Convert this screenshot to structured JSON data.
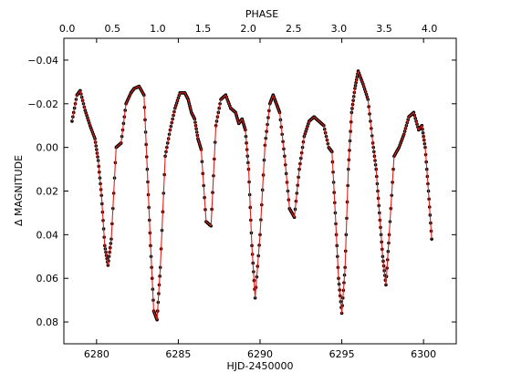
{
  "chart_data": {
    "type": "scatter",
    "xlabel": "HJD-2450000",
    "ylabel": "Δ MAGNITUDE",
    "top_xlabel": "PHASE",
    "xlim": [
      6278,
      6302
    ],
    "ylim": [
      0.09,
      -0.05
    ],
    "y_inverted": true,
    "x_ticks": [
      "6280",
      "6285",
      "6290",
      "6295",
      "6300"
    ],
    "y_ticks": [
      "−0.04",
      "−0.02",
      "0.00",
      "0.02",
      "0.04",
      "0.06",
      "0.08"
    ],
    "top_ticks": [
      "0.0",
      "0.5",
      "1.0",
      "1.5",
      "2.0",
      "2.5",
      "3.0",
      "3.5",
      "4.0"
    ],
    "top_axis": {
      "phase_zero_hjd": 6278.2,
      "period_days": 5.54
    },
    "grid": false,
    "series": [
      {
        "style": "points",
        "color": "#000000",
        "x": [
          6278.5,
          6278.8,
          6279.0,
          6279.3,
          6279.6,
          6279.9,
          6280.1,
          6280.3,
          6280.5,
          6280.7,
          6280.9,
          6281.2,
          6281.5,
          6281.8,
          6282.1,
          6282.3,
          6282.6,
          6282.9,
          6283.1,
          6283.3,
          6283.5,
          6283.7,
          6283.9,
          6284.2,
          6284.5,
          6284.8,
          6285.1,
          6285.4,
          6285.6,
          6285.8,
          6286.0,
          6286.2,
          6286.4,
          6286.7,
          6287.0,
          6287.3,
          6287.6,
          6287.9,
          6288.2,
          6288.5,
          6288.7,
          6288.9,
          6289.1,
          6289.3,
          6289.5,
          6289.7,
          6290.0,
          6290.3,
          6290.6,
          6290.8,
          6291.0,
          6291.2,
          6291.5,
          6291.8,
          6292.1,
          6292.4,
          6292.7,
          6293.0,
          6293.3,
          6293.6,
          6293.9,
          6294.2,
          6294.4,
          6294.6,
          6294.8,
          6295.0,
          6295.2,
          6295.4,
          6295.6,
          6295.8,
          6296.0,
          6296.3,
          6296.6,
          6296.9,
          6297.1,
          6297.3,
          6297.5,
          6297.7,
          6297.9,
          6298.2,
          6298.5,
          6298.8,
          6299.1,
          6299.4,
          6299.7,
          6299.9,
          6300.1,
          6300.3,
          6300.5
        ],
        "y": [
          -0.012,
          -0.024,
          -0.026,
          -0.017,
          -0.01,
          -0.004,
          0.006,
          0.022,
          0.045,
          0.054,
          0.042,
          0.0,
          -0.002,
          -0.02,
          -0.025,
          -0.027,
          -0.028,
          -0.024,
          0.01,
          0.045,
          0.075,
          0.079,
          0.055,
          0.004,
          -0.008,
          -0.018,
          -0.025,
          -0.025,
          -0.022,
          -0.016,
          -0.013,
          -0.004,
          0.001,
          0.034,
          0.036,
          -0.01,
          -0.022,
          -0.024,
          -0.018,
          -0.016,
          -0.011,
          -0.013,
          -0.008,
          0.01,
          0.045,
          0.069,
          0.04,
          -0.001,
          -0.02,
          -0.024,
          -0.02,
          -0.016,
          0.004,
          0.028,
          0.032,
          0.01,
          -0.005,
          -0.012,
          -0.014,
          -0.012,
          -0.01,
          0.0,
          0.002,
          0.03,
          0.06,
          0.076,
          0.055,
          0.01,
          -0.016,
          -0.027,
          -0.035,
          -0.029,
          -0.022,
          -0.002,
          0.01,
          0.03,
          0.05,
          0.063,
          0.04,
          0.004,
          0.0,
          -0.006,
          -0.014,
          -0.016,
          -0.008,
          -0.01,
          0.0,
          0.02,
          0.042
        ]
      },
      {
        "style": "line",
        "color": "#e0201b",
        "x": [
          6278.5,
          6278.8,
          6279.0,
          6279.3,
          6279.6,
          6279.9,
          6280.1,
          6280.3,
          6280.5,
          6280.7,
          6280.9,
          6281.2,
          6281.5,
          6281.8,
          6282.1,
          6282.3,
          6282.6,
          6282.9,
          6283.1,
          6283.3,
          6283.5,
          6283.7,
          6283.9,
          6284.2,
          6284.5,
          6284.8,
          6285.1,
          6285.4,
          6285.6,
          6285.8,
          6286.0,
          6286.2,
          6286.4,
          6286.7,
          6287.0,
          6287.3,
          6287.6,
          6287.9,
          6288.2,
          6288.5,
          6288.7,
          6288.9,
          6289.1,
          6289.3,
          6289.5,
          6289.7,
          6290.0,
          6290.3,
          6290.6,
          6290.8,
          6291.0,
          6291.2,
          6291.5,
          6291.8,
          6292.1,
          6292.4,
          6292.7,
          6293.0,
          6293.3,
          6293.6,
          6293.9,
          6294.2,
          6294.4,
          6294.6,
          6294.8,
          6295.0,
          6295.2,
          6295.4,
          6295.6,
          6295.8,
          6296.0,
          6296.3,
          6296.6,
          6296.9,
          6297.1,
          6297.3,
          6297.5,
          6297.7,
          6297.9,
          6298.2,
          6298.5,
          6298.8,
          6299.1,
          6299.4,
          6299.7,
          6299.9,
          6300.1,
          6300.3,
          6300.5
        ],
        "y": [
          -0.012,
          -0.024,
          -0.026,
          -0.017,
          -0.01,
          -0.004,
          0.006,
          0.022,
          0.045,
          0.054,
          0.042,
          0.0,
          -0.002,
          -0.02,
          -0.025,
          -0.027,
          -0.028,
          -0.024,
          0.01,
          0.045,
          0.075,
          0.079,
          0.055,
          0.004,
          -0.008,
          -0.018,
          -0.025,
          -0.025,
          -0.022,
          -0.016,
          -0.013,
          -0.004,
          0.001,
          0.034,
          0.036,
          -0.01,
          -0.022,
          -0.024,
          -0.018,
          -0.016,
          -0.011,
          -0.013,
          -0.008,
          0.01,
          0.045,
          0.069,
          0.04,
          -0.001,
          -0.02,
          -0.024,
          -0.02,
          -0.016,
          0.004,
          0.028,
          0.032,
          0.01,
          -0.005,
          -0.012,
          -0.014,
          -0.012,
          -0.01,
          0.0,
          0.002,
          0.03,
          0.06,
          0.076,
          0.055,
          0.01,
          -0.016,
          -0.027,
          -0.035,
          -0.029,
          -0.022,
          -0.002,
          0.01,
          0.03,
          0.05,
          0.063,
          0.04,
          0.004,
          0.0,
          -0.006,
          -0.014,
          -0.016,
          -0.008,
          -0.01,
          0.0,
          0.02,
          0.042
        ]
      }
    ]
  }
}
